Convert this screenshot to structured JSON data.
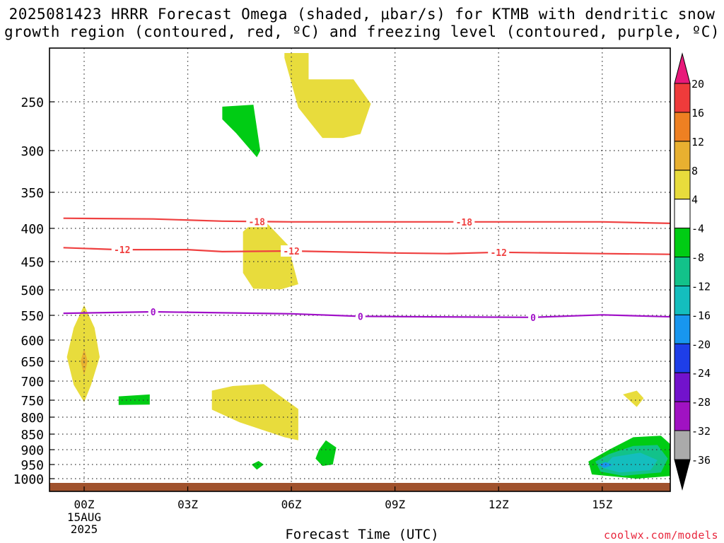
{
  "title_line1": "2025081423 HRRR Forecast Omega (shaded, μbar/s) for KTMB with dendritic snow",
  "title_line2": "growth region (contoured, red, ºC) and freezing level (contoured, purple, ºC)",
  "credit": "coolwx.com/models",
  "chart_data": {
    "type": "contour",
    "xlabel": "Forecast Time (UTC)",
    "ylabel": "",
    "x_domain_hours": [
      -0.6,
      17.0
    ],
    "y_ticks": [
      250,
      300,
      350,
      400,
      450,
      500,
      550,
      600,
      650,
      700,
      750,
      800,
      850,
      900,
      950,
      1000
    ],
    "x_ticks": [
      {
        "hour": 0,
        "label": "00Z",
        "sub": [
          "15AUG",
          "2025"
        ]
      },
      {
        "hour": 3,
        "label": "03Z",
        "sub": []
      },
      {
        "hour": 6,
        "label": "06Z",
        "sub": []
      },
      {
        "hour": 9,
        "label": "09Z",
        "sub": []
      },
      {
        "hour": 12,
        "label": "12Z",
        "sub": []
      },
      {
        "hour": 15,
        "label": "15Z",
        "sub": []
      }
    ],
    "grid": true,
    "colorbar": {
      "labels": [
        "20",
        "16",
        "12",
        "8",
        "4",
        "-4",
        "-8",
        "-12",
        "-16",
        "-20",
        "-24",
        "-28",
        "-32",
        "-36"
      ],
      "colors": [
        "#e8197a",
        "#ef3b3b",
        "#ee8022",
        "#e8b030",
        "#e8dc3c",
        "#ffffff",
        "#00cc14",
        "#12c28a",
        "#14bebe",
        "#1896ef",
        "#1e3ee8",
        "#7212cc",
        "#a012c2",
        "#aaaaaa",
        "#000000"
      ]
    },
    "contour_lines": [
      {
        "field": "temperature",
        "value": -18,
        "label": "-18",
        "color": "#ef4040",
        "points": [
          [
            -0.6,
            386
          ],
          [
            2,
            387
          ],
          [
            4,
            390
          ],
          [
            6,
            391
          ],
          [
            9,
            391
          ],
          [
            12,
            391
          ],
          [
            15,
            391
          ],
          [
            17,
            393
          ]
        ],
        "label_hours": [
          5,
          11
        ]
      },
      {
        "field": "temperature",
        "value": -12,
        "label": "-12",
        "color": "#ef4040",
        "points": [
          [
            -0.6,
            429
          ],
          [
            1,
            432
          ],
          [
            3,
            432
          ],
          [
            4,
            435
          ],
          [
            6,
            434
          ],
          [
            9,
            437
          ],
          [
            10.5,
            438
          ],
          [
            12,
            436
          ],
          [
            15,
            438
          ],
          [
            17,
            439
          ]
        ],
        "label_hours": [
          1.1,
          6,
          12
        ]
      },
      {
        "field": "freezing_level",
        "value": 0,
        "label": "0",
        "color": "#a010c8",
        "points": [
          [
            -0.6,
            546
          ],
          [
            2,
            543
          ],
          [
            4,
            545
          ],
          [
            6,
            547
          ],
          [
            8,
            552
          ],
          [
            10,
            553
          ],
          [
            13,
            554
          ],
          [
            15,
            549
          ],
          [
            17,
            553
          ]
        ],
        "label_hours": [
          2,
          8,
          13
        ]
      }
    ],
    "shaded_regions": [
      {
        "value_class": "4 to 8",
        "color": "#e8dc3c",
        "points": [
          [
            5.8,
            200
          ],
          [
            6.5,
            200
          ],
          [
            6.5,
            227
          ],
          [
            7.8,
            227
          ],
          [
            8.3,
            252
          ],
          [
            8.0,
            283
          ],
          [
            7.5,
            287
          ],
          [
            6.9,
            287
          ],
          [
            6.2,
            256
          ],
          [
            5.8,
            205
          ]
        ]
      },
      {
        "value_class": "-4 to -8",
        "color": "#00cc14",
        "points": [
          [
            4.0,
            255
          ],
          [
            4.9,
            253
          ],
          [
            5.1,
            300
          ],
          [
            5.0,
            308
          ],
          [
            4.4,
            282
          ],
          [
            4.0,
            268
          ]
        ]
      },
      {
        "value_class": "4 to 8",
        "color": "#e8dc3c",
        "points": [
          [
            4.6,
            405
          ],
          [
            5.1,
            383
          ],
          [
            5.9,
            425
          ],
          [
            6.2,
            490
          ],
          [
            5.7,
            499
          ],
          [
            4.9,
            498
          ],
          [
            4.6,
            470
          ]
        ]
      },
      {
        "value_class": "4 to 8",
        "color": "#e8dc3c",
        "points": [
          [
            0,
            530
          ],
          [
            0.3,
            575
          ],
          [
            0.45,
            640
          ],
          [
            0.2,
            710
          ],
          [
            0,
            756
          ],
          [
            -0.3,
            710
          ],
          [
            -0.5,
            640
          ],
          [
            -0.3,
            575
          ]
        ]
      },
      {
        "value_class": "8 to 12",
        "color": "#e8b030",
        "points": [
          [
            0,
            620
          ],
          [
            0.1,
            650
          ],
          [
            0,
            685
          ],
          [
            -0.1,
            650
          ]
        ]
      },
      {
        "value_class": "-4 to -8",
        "color": "#00cc14",
        "points": [
          [
            1.0,
            740
          ],
          [
            1.9,
            735
          ],
          [
            1.9,
            763
          ],
          [
            1.0,
            764
          ]
        ]
      },
      {
        "value_class": "4 to 8",
        "color": "#e8dc3c",
        "points": [
          [
            3.7,
            725
          ],
          [
            4.3,
            713
          ],
          [
            5.2,
            708
          ],
          [
            6.2,
            776
          ],
          [
            6.2,
            870
          ],
          [
            5.8,
            860
          ],
          [
            4.5,
            815
          ],
          [
            3.7,
            778
          ]
        ]
      },
      {
        "value_class": "-4 to -8",
        "color": "#00cc14",
        "points": [
          [
            4.85,
            950
          ],
          [
            5.05,
            938
          ],
          [
            5.2,
            950
          ],
          [
            5.0,
            968
          ]
        ]
      },
      {
        "value_class": "-4 to -8",
        "color": "#00cc14",
        "points": [
          [
            6.8,
            900
          ],
          [
            7.0,
            870
          ],
          [
            7.3,
            893
          ],
          [
            7.2,
            950
          ],
          [
            6.9,
            955
          ],
          [
            6.7,
            930
          ]
        ]
      },
      {
        "value_class": "4 to 8",
        "color": "#e8dc3c",
        "points": [
          [
            15.6,
            735
          ],
          [
            16.0,
            725
          ],
          [
            16.2,
            745
          ],
          [
            16.0,
            770
          ]
        ]
      },
      {
        "value_class": "-4 to -8",
        "color": "#00cc14",
        "points": [
          [
            15.2,
            900
          ],
          [
            15.9,
            860
          ],
          [
            16.7,
            855
          ],
          [
            17.1,
            895
          ],
          [
            17.05,
            990
          ],
          [
            16.0,
            1000
          ],
          [
            14.7,
            985
          ],
          [
            14.6,
            940
          ]
        ]
      },
      {
        "value_class": "-8 to -12",
        "color": "#12c28a",
        "points": [
          [
            15.2,
            915
          ],
          [
            15.9,
            888
          ],
          [
            16.6,
            885
          ],
          [
            16.9,
            930
          ],
          [
            16.7,
            978
          ],
          [
            15.6,
            990
          ],
          [
            14.95,
            975
          ],
          [
            14.8,
            940
          ]
        ]
      },
      {
        "value_class": "-12 to -16",
        "color": "#14bebe",
        "points": [
          [
            15.3,
            925
          ],
          [
            16.1,
            910
          ],
          [
            16.6,
            935
          ],
          [
            16.4,
            970
          ],
          [
            15.5,
            978
          ],
          [
            15.0,
            962
          ]
        ]
      },
      {
        "value_class": "-16 to -20",
        "color": "#1896ef",
        "points": [
          [
            14.9,
            950
          ],
          [
            15.1,
            942
          ],
          [
            15.3,
            952
          ],
          [
            15.05,
            962
          ]
        ]
      }
    ],
    "ground_color": "#a0522d",
    "plot_background": "#ffffff"
  }
}
